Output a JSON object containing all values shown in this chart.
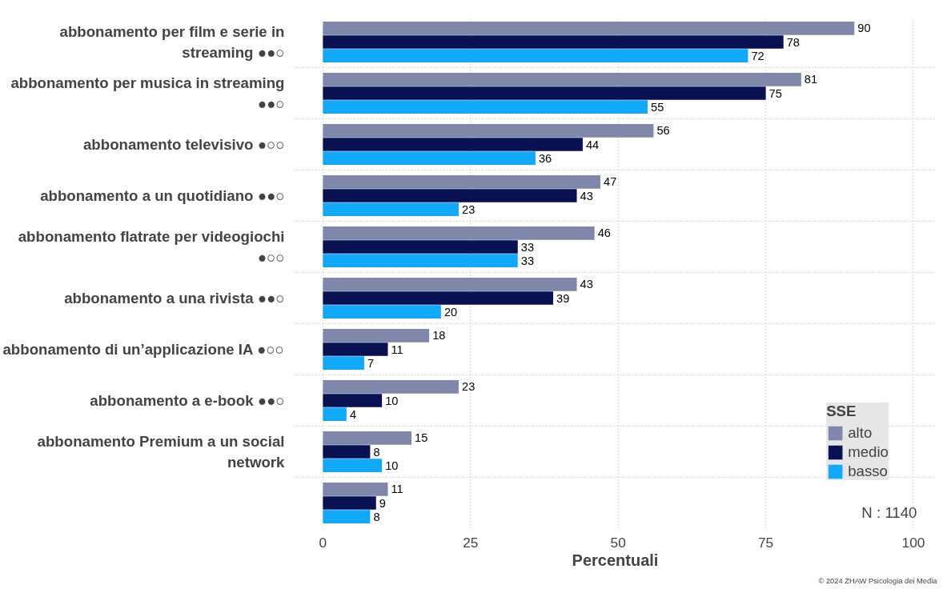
{
  "chart_data": {
    "type": "bar",
    "orientation": "horizontal",
    "xlabel": "Percentuali",
    "legend_title": "SSE",
    "legend": "bottom right",
    "grid": true,
    "data_labels": true,
    "categories": [
      "abbonamento per film e serie in streaming ●●○",
      "abbonamento per musica in streaming ●●○",
      "abbonamento televisivo ●○○",
      "abbonamento a un quotidiano ●●○",
      "abbonamento flatrate per videogiochi ●○○",
      "abbonamento a una rivista ●●○",
      "abbonamento di un’applicazione IA ●○○",
      "abbonamento a e-book ●●○",
      "abbonamento Premium a un social network",
      null
    ],
    "series": [
      {
        "name": "alto",
        "color": "#7f87aa",
        "values": [
          90,
          81,
          56,
          47,
          46,
          43,
          18,
          23,
          15,
          11
        ]
      },
      {
        "name": "medio",
        "color": "#0a1152",
        "values": [
          78,
          75,
          44,
          43,
          33,
          39,
          11,
          10,
          8,
          9
        ]
      },
      {
        "name": "basso",
        "color": "#13a9fb",
        "values": [
          72,
          55,
          36,
          23,
          33,
          20,
          7,
          4,
          10,
          8
        ]
      }
    ],
    "xlim": [
      -5,
      104
    ],
    "xticks": [
      0,
      25,
      50,
      75,
      100
    ],
    "annotations": [
      "N : 1140",
      "© 2024 ZHAW Psicologia dei Media"
    ]
  }
}
